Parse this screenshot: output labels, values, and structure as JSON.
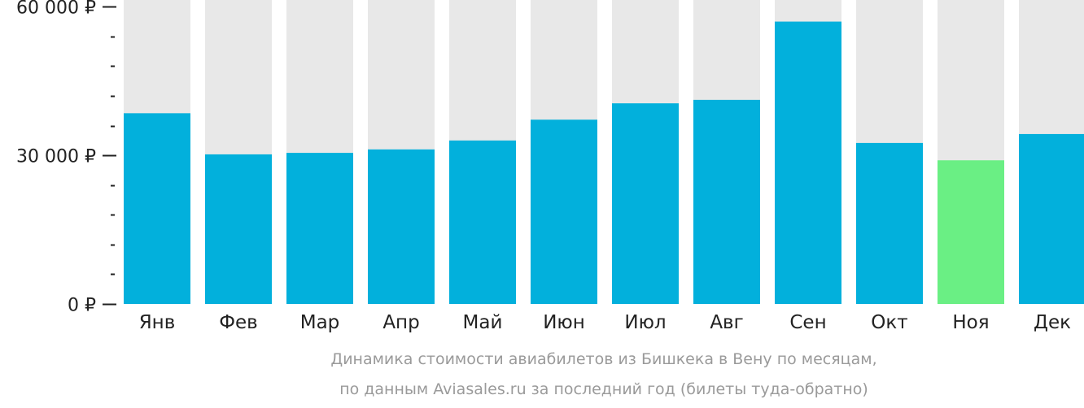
{
  "chart_data": {
    "type": "bar",
    "categories": [
      "Янв",
      "Фев",
      "Мар",
      "Апр",
      "Май",
      "Июн",
      "Июл",
      "Авг",
      "Сен",
      "Окт",
      "Ноя",
      "Дек"
    ],
    "values": [
      38500,
      30200,
      30500,
      31200,
      33000,
      37200,
      40500,
      41200,
      57000,
      32500,
      29000,
      34300
    ],
    "ylim": [
      0,
      63000
    ],
    "yticks": [
      {
        "value": 0,
        "label": "0 ₽"
      },
      {
        "value": 30000,
        "label": "30 000 ₽"
      },
      {
        "value": 60000,
        "label": "60 000 ₽"
      }
    ],
    "minor_tick_step": 6000,
    "highlight_index": 10,
    "colors": {
      "bar": "#02b0dc",
      "highlight": "#6aef84",
      "background_bar": "#e8e8e8",
      "axis": "#222222"
    },
    "caption": [
      "Динамика стоимости авиабилетов из Бишкека в Вену по месяцам,",
      "по данным Aviasales.ru за последний год (билеты туда-обратно)"
    ]
  }
}
